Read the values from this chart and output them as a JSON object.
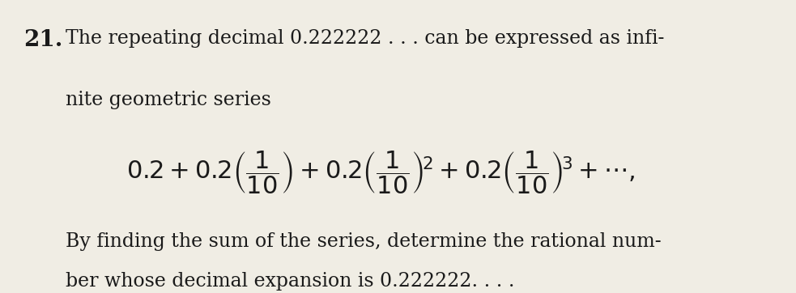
{
  "background_color": "#f0ede4",
  "text_color": "#1a1a1a",
  "problem_number": "21.",
  "line1": "The repeating decimal 0.222222 . . . can be expressed as infi-",
  "line2": "nite geometric series",
  "formula": "0.2 + 0.2\\left(\\frac{1}{10}\\right) + 0.2\\left(\\frac{1}{10}\\right)^2 + 0.2\\left(\\frac{1}{10}\\right)^3 + \\cdots,",
  "line3": "By finding the sum of the series, determine the rational num-",
  "line4": "ber whose decimal expansion is 0.222222. . . .",
  "fontsize_text": 17,
  "fontsize_formula": 22,
  "fontsize_number": 20
}
